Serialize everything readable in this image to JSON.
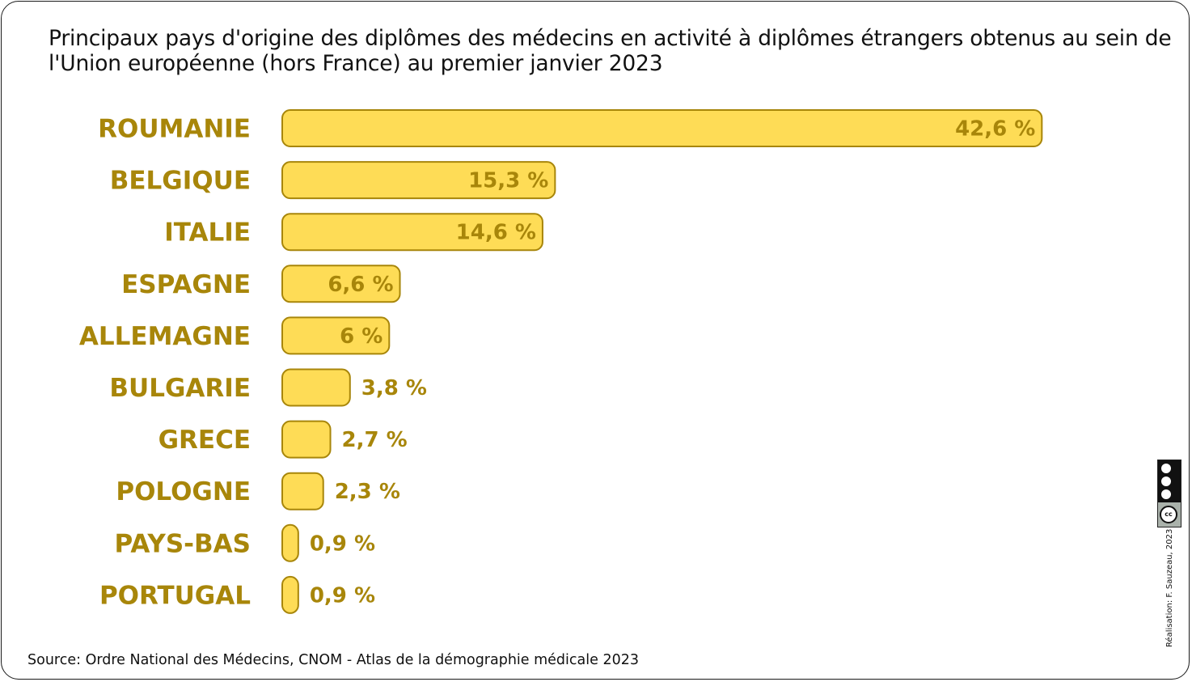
{
  "title": "Principaux pays d'origine des diplômes des médecins en activité à diplômes étrangers obtenus au sein de l'Union européenne (hors France) au premier janvier 2023",
  "source": "Source: Ordre  National des Médecins, CNOM - Atlas de la démographie médicale 2023",
  "credit": "Réalisation: F. Sauzeau, 2023",
  "license_icon": "cc-by-nc-sa-icon",
  "colors": {
    "bar_fill": "#fedc56",
    "bar_stroke": "#a8860a",
    "label": "#a8860a"
  },
  "chart_data": {
    "type": "bar",
    "orientation": "horizontal",
    "categories": [
      "ROUMANIE",
      "BELGIQUE",
      "ITALIE",
      "ESPAGNE",
      "ALLEMAGNE",
      "BULGARIE",
      "GRECE",
      "POLOGNE",
      "PAYS-BAS",
      "PORTUGAL"
    ],
    "values": [
      42.6,
      15.3,
      14.6,
      6.6,
      6,
      3.8,
      2.7,
      2.3,
      0.9,
      0.9
    ],
    "value_labels": [
      "42,6 %",
      "15,3 %",
      "14,6 %",
      "6,6 %",
      "6 %",
      "3,8 %",
      "2,7 %",
      "2,3 %",
      "0,9 %",
      "0,9 %"
    ],
    "unit": "%",
    "grid": false,
    "legend": false
  }
}
